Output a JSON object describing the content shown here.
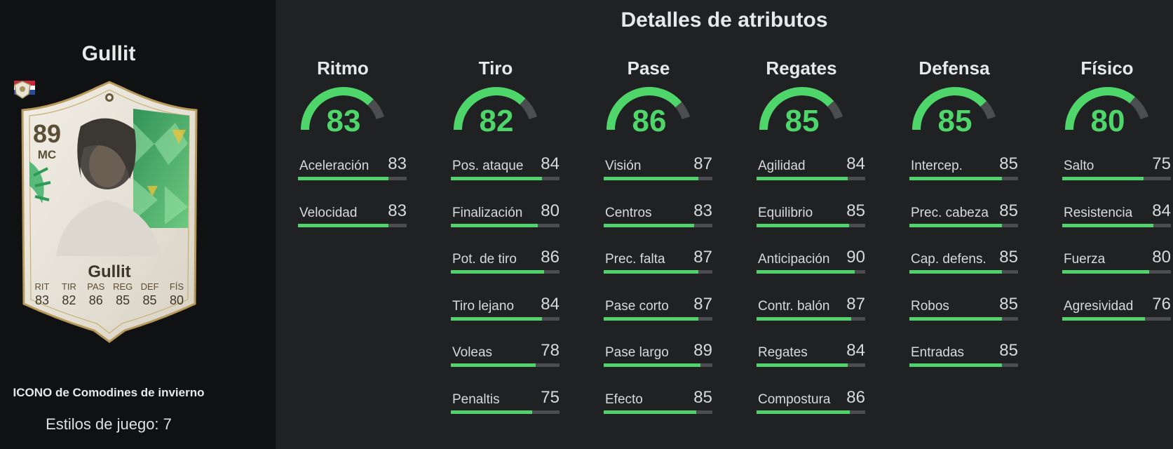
{
  "player": {
    "name": "Gullit",
    "card_rating": "89",
    "card_position": "MC",
    "card_name": "Gullit",
    "card_stats": [
      {
        "label": "RIT",
        "value": "83"
      },
      {
        "label": "TIR",
        "value": "82"
      },
      {
        "label": "PAS",
        "value": "86"
      },
      {
        "label": "REG",
        "value": "85"
      },
      {
        "label": "DEF",
        "value": "85"
      },
      {
        "label": "FÍS",
        "value": "80"
      }
    ],
    "card_type": "ICONO de Comodines de invierno",
    "playstyles": "Estilos de juego: 7",
    "nation_flag": "netherlands-flag-icon",
    "badge": "icon-badge"
  },
  "details_title": "Detalles de atributos",
  "colors": {
    "accent_green": "#4fd66a",
    "bar_green": "#51d26c",
    "track_gray": "#4b4d50",
    "panel_dark": "#101112",
    "background": "#1f2123"
  },
  "categories": [
    {
      "name": "Ritmo",
      "value": "83",
      "stats": [
        {
          "name": "Aceleración",
          "value": "83"
        },
        {
          "name": "Velocidad",
          "value": "83"
        }
      ]
    },
    {
      "name": "Tiro",
      "value": "82",
      "stats": [
        {
          "name": "Pos. ataque",
          "value": "84"
        },
        {
          "name": "Finalización",
          "value": "80"
        },
        {
          "name": "Pot. de tiro",
          "value": "86"
        },
        {
          "name": "Tiro lejano",
          "value": "84"
        },
        {
          "name": "Voleas",
          "value": "78"
        },
        {
          "name": "Penaltis",
          "value": "75"
        }
      ]
    },
    {
      "name": "Pase",
      "value": "86",
      "stats": [
        {
          "name": "Visión",
          "value": "87"
        },
        {
          "name": "Centros",
          "value": "83"
        },
        {
          "name": "Prec. falta",
          "value": "87"
        },
        {
          "name": "Pase corto",
          "value": "87"
        },
        {
          "name": "Pase largo",
          "value": "89"
        },
        {
          "name": "Efecto",
          "value": "85"
        }
      ]
    },
    {
      "name": "Regates",
      "value": "85",
      "stats": [
        {
          "name": "Agilidad",
          "value": "84"
        },
        {
          "name": "Equilibrio",
          "value": "85"
        },
        {
          "name": "Anticipación",
          "value": "90"
        },
        {
          "name": "Contr. balón",
          "value": "87"
        },
        {
          "name": "Regates",
          "value": "84"
        },
        {
          "name": "Compostura",
          "value": "86"
        }
      ]
    },
    {
      "name": "Defensa",
      "value": "85",
      "stats": [
        {
          "name": "Intercep.",
          "value": "85"
        },
        {
          "name": "Prec. cabeza",
          "value": "85"
        },
        {
          "name": "Cap. defens.",
          "value": "85"
        },
        {
          "name": "Robos",
          "value": "85"
        },
        {
          "name": "Entradas",
          "value": "85"
        }
      ]
    },
    {
      "name": "Físico",
      "value": "80",
      "stats": [
        {
          "name": "Salto",
          "value": "75"
        },
        {
          "name": "Resistencia",
          "value": "84"
        },
        {
          "name": "Fuerza",
          "value": "80"
        },
        {
          "name": "Agresividad",
          "value": "76"
        }
      ]
    }
  ]
}
